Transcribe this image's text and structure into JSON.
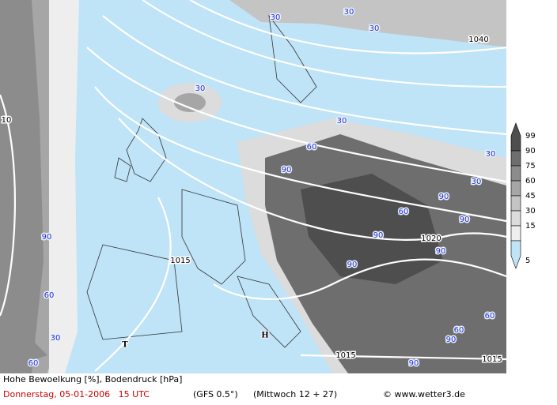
{
  "map": {
    "isobar_labels": [
      1040,
      1020,
      1015,
      1015,
      1015,
      10
    ],
    "cloud_labels": [
      30,
      30,
      30,
      30,
      30,
      30,
      30,
      30,
      60,
      60,
      60,
      60,
      60,
      60,
      90,
      90,
      90,
      90,
      90,
      90,
      90,
      90,
      90
    ],
    "pressure_centers": [
      "H",
      "T"
    ]
  },
  "legend": {
    "levels": [
      99,
      90,
      75,
      60,
      45,
      30,
      15,
      5
    ],
    "colors": [
      "#4e4e4e",
      "#6e6e6e",
      "#8c8c8c",
      "#a6a6a6",
      "#c4c4c4",
      "#dcdcdc",
      "#eeeeee",
      "#bfe3f7"
    ]
  },
  "footer": {
    "title": "Hohe Bewoelkung [%], Bodendruck [hPa]",
    "date": "Donnerstag, 05-01-2006   15 UTC",
    "model": "(GFS 0.5°)",
    "run": "(Mittwoch 12 + 27)",
    "credit": "© www.wetter3.de"
  }
}
